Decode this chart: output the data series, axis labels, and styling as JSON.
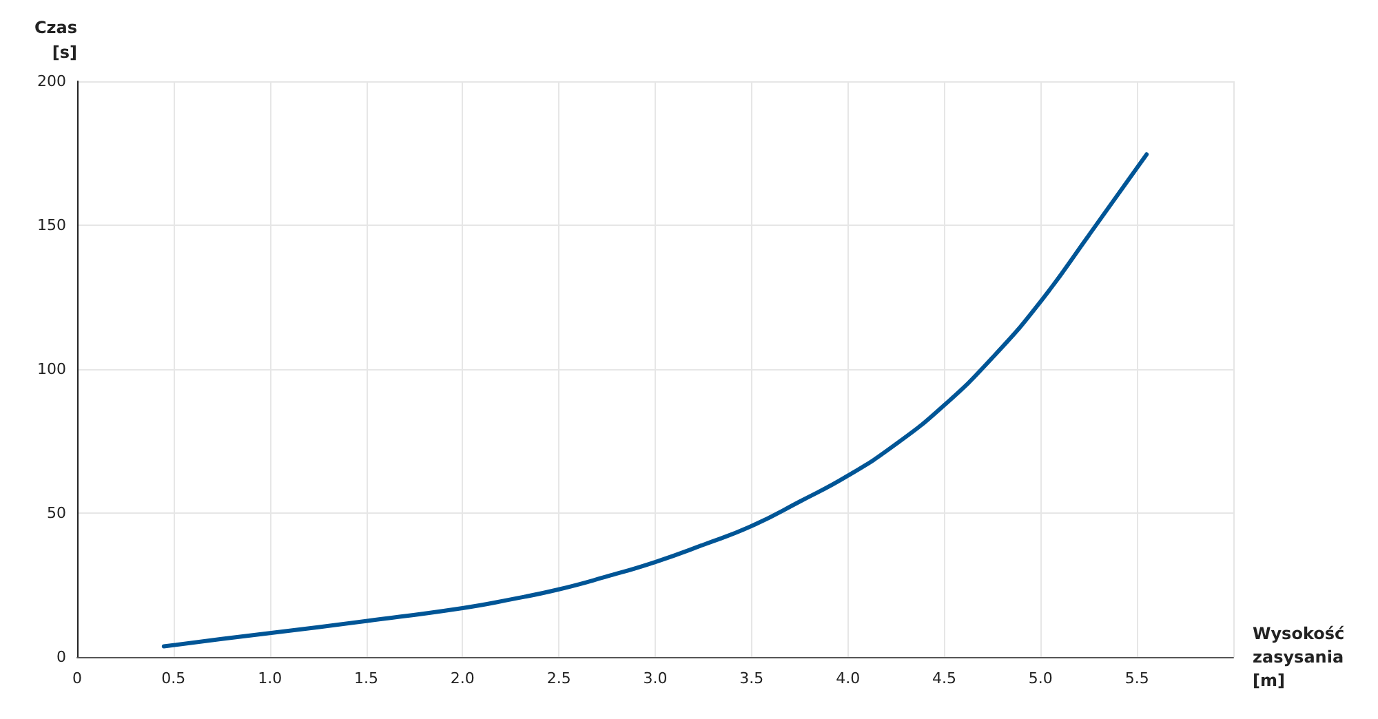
{
  "chart_data": {
    "type": "line",
    "ylabel": "Czas\n[s]",
    "xlabel": "Wysokość\nzasysania\n[m]",
    "x": [
      0.45,
      0.75,
      1,
      1.5,
      2,
      2.25,
      2.5,
      2.75,
      3,
      3.25,
      3.5,
      3.75,
      4,
      4.25,
      4.5,
      4.75,
      5,
      5.25,
      5.55
    ],
    "series": [
      {
        "color": "#005596",
        "values": [
          3.7,
          6.3,
          8.3,
          12.5,
          17,
          20,
          23.5,
          28,
          33,
          39,
          45.5,
          54,
          63,
          74,
          87.5,
          104,
          123.5,
          146.5,
          174.6
        ]
      }
    ],
    "xlim": [
      0,
      6
    ],
    "xticks": [
      0,
      {
        "value": 0.5,
        "label": "0.5"
      },
      {
        "value": 1,
        "label": "1.0"
      },
      {
        "value": 1.5,
        "label": "1.5"
      },
      {
        "value": 2,
        "label": "2.0"
      },
      {
        "value": 2.5,
        "label": "2.5"
      },
      {
        "value": 3,
        "label": "3.0"
      },
      {
        "value": 3.5,
        "label": "3.5"
      },
      {
        "value": 4,
        "label": "4.0"
      },
      {
        "value": 4.5,
        "label": "4.5"
      },
      {
        "value": 5,
        "label": "5.0"
      },
      {
        "value": 5.5,
        "label": "5.5"
      },
      {
        "value": 6,
        "label": null
      }
    ],
    "ylim": [
      0,
      200
    ],
    "yticks": [
      0,
      50,
      100,
      150,
      200
    ],
    "grid": true,
    "marker": "none",
    "line_style": "solid"
  }
}
